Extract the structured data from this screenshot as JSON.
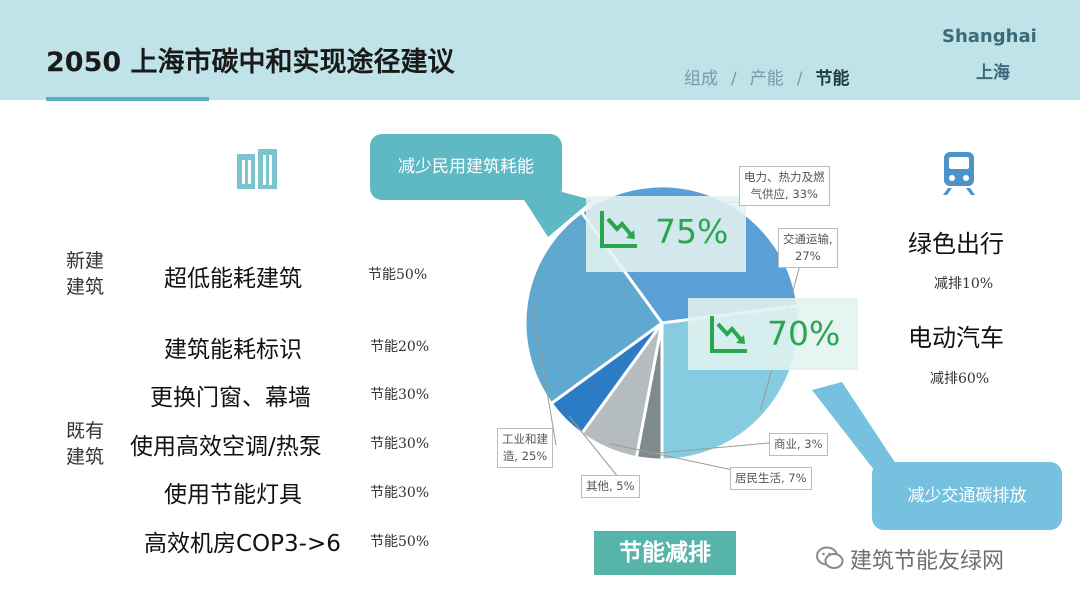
{
  "header": {
    "title": "2050 上海市碳中和实现途径建议",
    "tabs": [
      {
        "label": "组成",
        "active": false
      },
      {
        "label": "产能",
        "active": false
      },
      {
        "label": "节能",
        "active": true
      }
    ],
    "tab_separator": "/",
    "brand_en": "Shanghai",
    "brand_cn": "上海"
  },
  "icons": {
    "building": "building-icon",
    "train": "train-icon",
    "trend_down": "trend-down-icon",
    "wechat": "wechat-icon"
  },
  "buildings": {
    "new_label": "新建\n建筑",
    "existing_label": "既有\n建筑",
    "measures": [
      {
        "name": "超低能耗建筑",
        "saving": "节能50%"
      },
      {
        "name": "建筑能耗标识",
        "saving": "节能20%"
      },
      {
        "name": "更换门窗、幕墙",
        "saving": "节能30%"
      },
      {
        "name": "使用高效空调/热泵",
        "saving": "节能30%"
      },
      {
        "name": "使用节能灯具",
        "saving": "节能30%"
      },
      {
        "name": "高效机房COP3->6",
        "saving": "节能50%"
      }
    ]
  },
  "callouts": {
    "left": "减少民用建筑耗能",
    "right": "减少交通碳排放"
  },
  "reductions": {
    "buildings_pct": "75%",
    "transport_pct": "70%"
  },
  "transport": {
    "items": [
      {
        "name": "绿色出行",
        "saving": "减排10%"
      },
      {
        "name": "电动汽车",
        "saving": "减排60%"
      }
    ]
  },
  "bottom_label": "节能减排",
  "watermark": "建筑节能友绿网",
  "colors": {
    "header_bg": "#bfe3e8",
    "accent": "#5ab0c2",
    "green": "#2aa64e",
    "badge": "#56b5a8"
  },
  "chart_data": {
    "type": "pie",
    "slices": [
      {
        "label": "电力、热力及燃气供应",
        "value": 33,
        "color": "#5a9fd6"
      },
      {
        "label": "交通运输",
        "value": 27,
        "color": "#86cbe0"
      },
      {
        "label": "商业",
        "value": 3,
        "color": "#7f8a8d"
      },
      {
        "label": "居民生活",
        "value": 7,
        "color": "#b4bcbf"
      },
      {
        "label": "其他",
        "value": 5,
        "color": "#2b7cc4"
      },
      {
        "label": "工业和建造",
        "value": 25,
        "color": "#5fa8cf"
      }
    ],
    "data_labels": [
      {
        "line1": "电力、热力及燃",
        "line2": "气供应, 33%"
      },
      {
        "line1": "交通运输,",
        "line2": "27%"
      },
      {
        "line1": "商业, 3%",
        "line2": ""
      },
      {
        "line1": "居民生活, 7%",
        "line2": ""
      },
      {
        "line1": "其他, 5%",
        "line2": ""
      },
      {
        "line1": "工业和建",
        "line2": "造, 25%"
      }
    ],
    "start_angle_deg": -126,
    "legend": "none"
  }
}
